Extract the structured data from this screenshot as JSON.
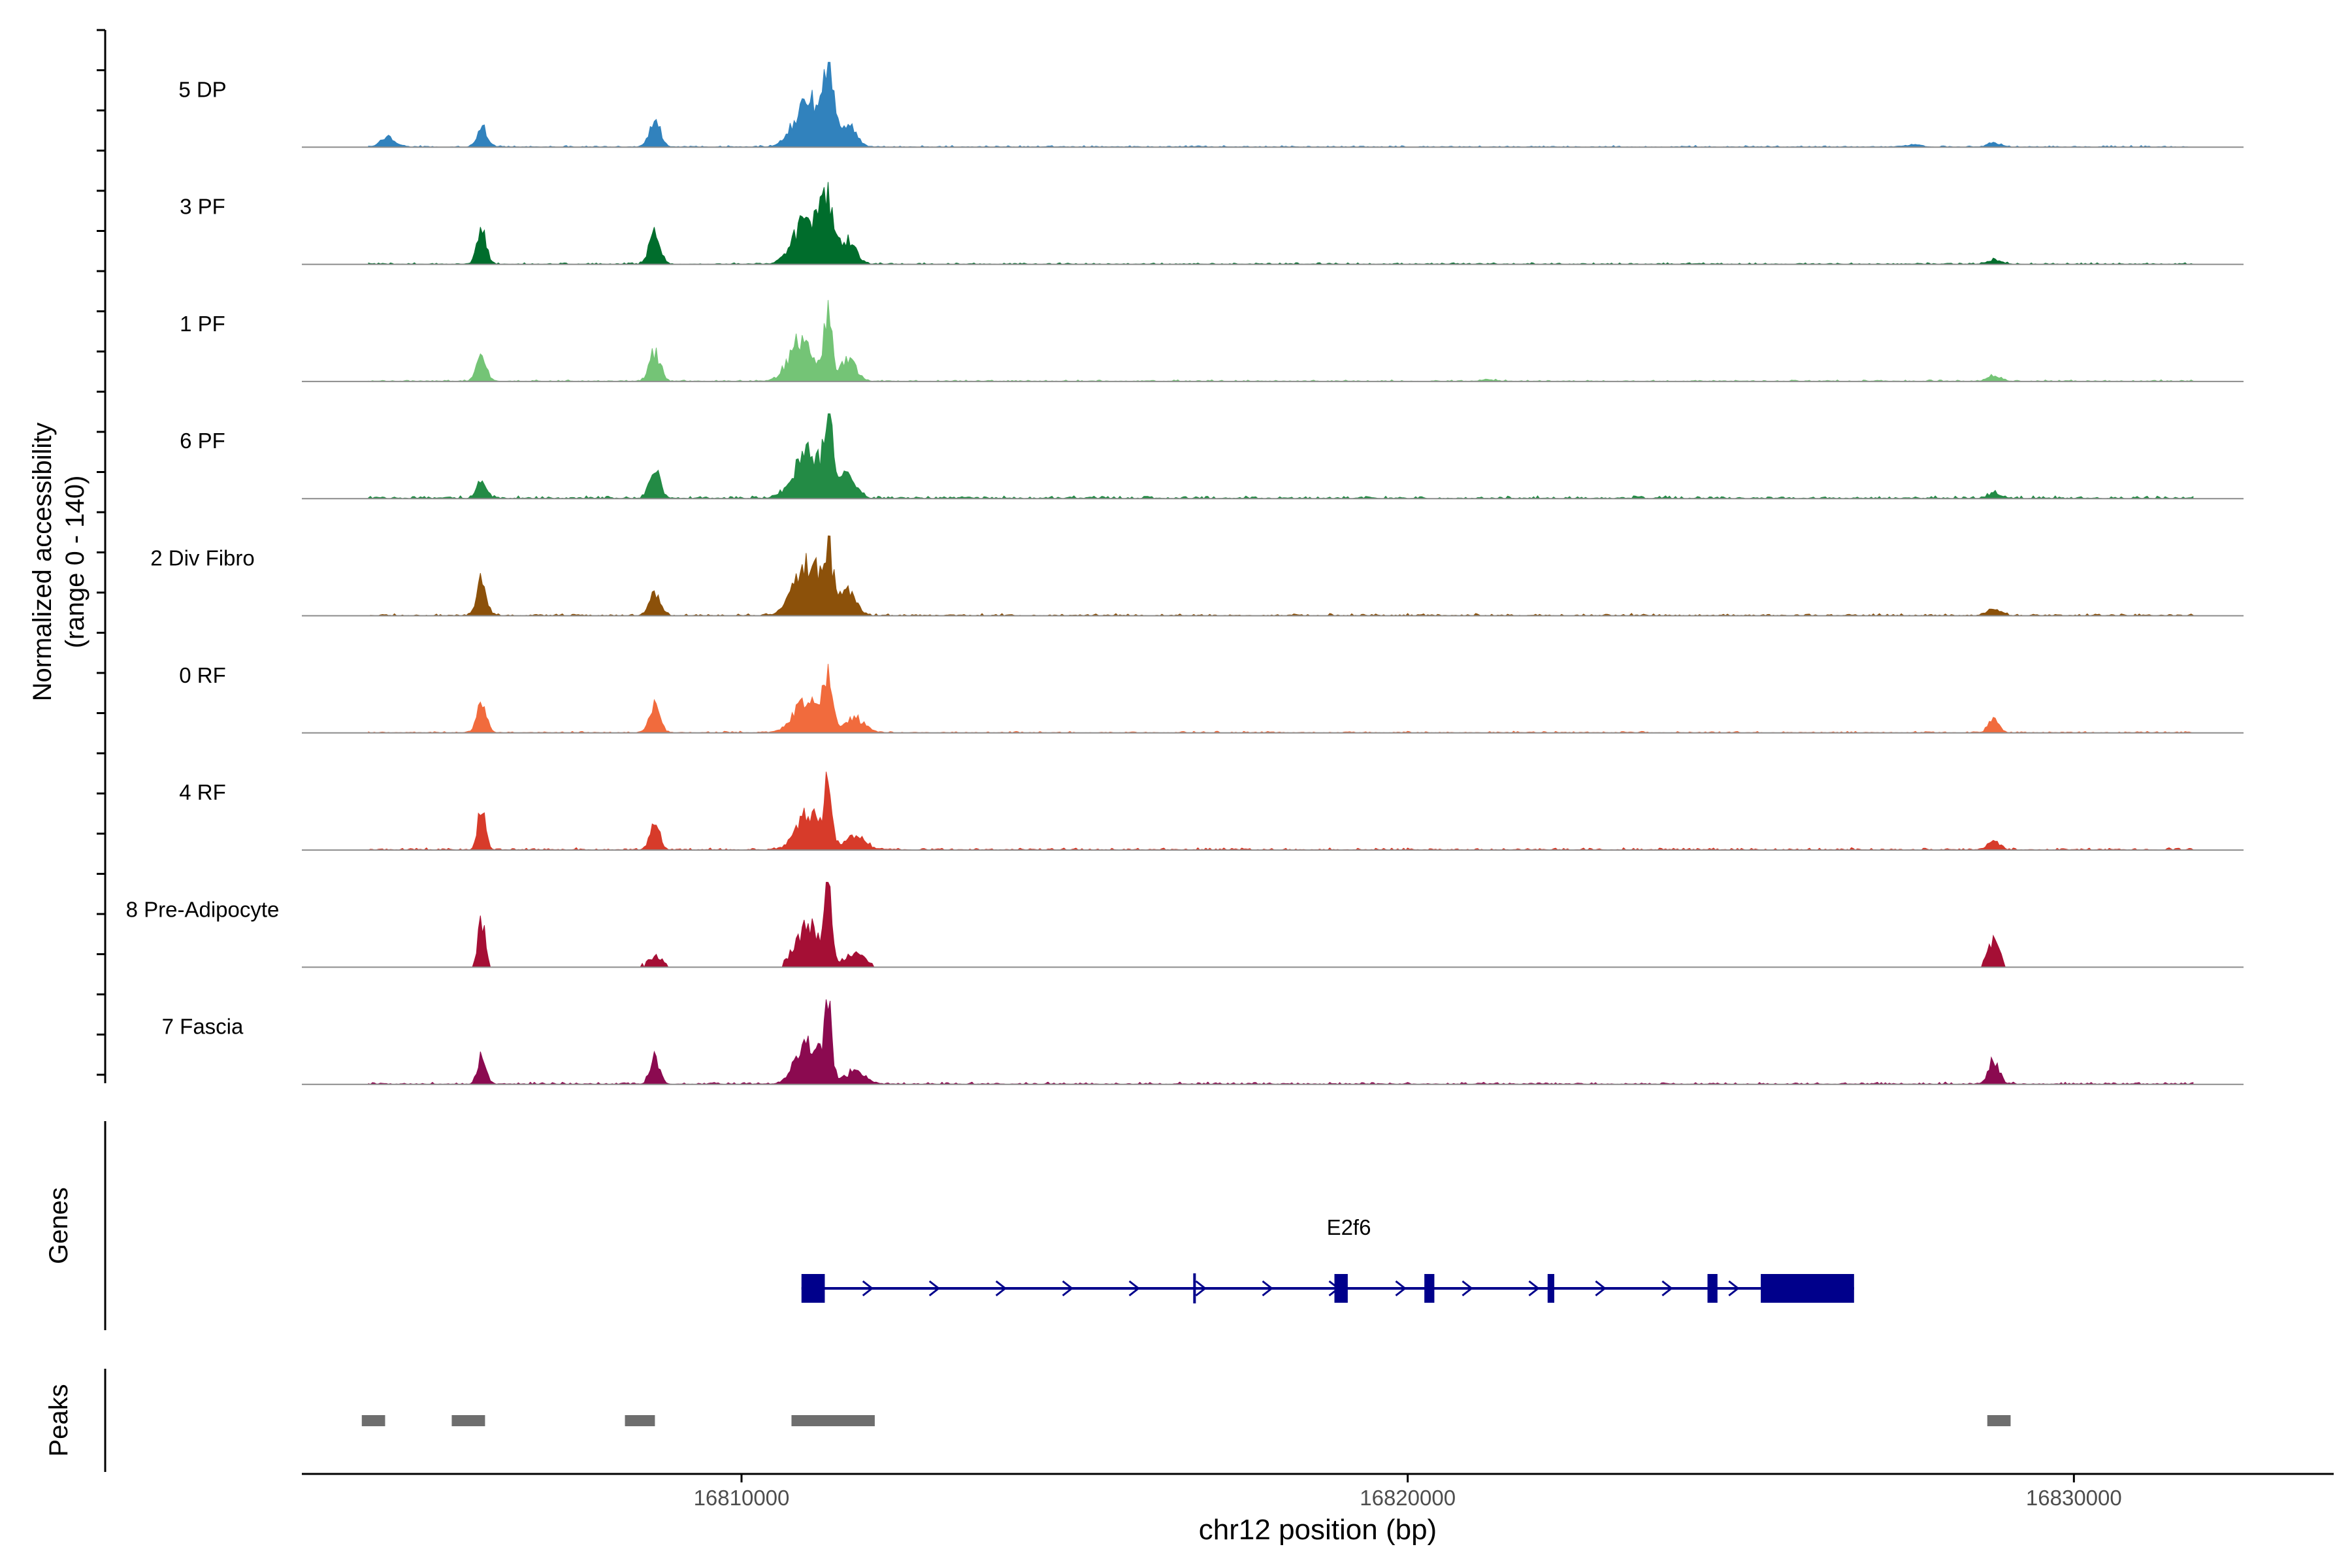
{
  "chart_data": {
    "type": "area",
    "y_axis_label_line1": "Normalized accessibility",
    "y_axis_label_line2": "(range 0 - 140)",
    "ylim": [
      0,
      140
    ],
    "x_axis": {
      "label": "chr12 position (bp)",
      "range": [
        16803400,
        16833900
      ],
      "ticks": [
        {
          "value": 16810000,
          "label": "16810000"
        },
        {
          "value": 16820000,
          "label": "16820000"
        },
        {
          "value": 16830000,
          "label": "16830000"
        }
      ]
    },
    "track_start": 16804400,
    "track_end": 16831800,
    "series": [
      {
        "name": "5 DP",
        "color": "#3182BD",
        "baseline": 3,
        "peaks": [
          [
            16804700,
            20,
            110
          ],
          [
            16806100,
            46,
            70
          ],
          [
            16808700,
            58,
            80
          ],
          [
            16811000,
            100,
            200
          ],
          [
            16811300,
            135,
            80
          ],
          [
            16811600,
            45,
            120
          ],
          [
            16827600,
            5,
            120
          ],
          [
            16828800,
            9,
            100
          ]
        ]
      },
      {
        "name": "3 PF",
        "color": "#006D2C",
        "baseline": 3,
        "peaks": [
          [
            16806100,
            66,
            70
          ],
          [
            16808700,
            70,
            80
          ],
          [
            16811000,
            100,
            200
          ],
          [
            16811300,
            112,
            90
          ],
          [
            16811600,
            50,
            120
          ],
          [
            16828800,
            9,
            100
          ]
        ]
      },
      {
        "name": "1 PF",
        "color": "#74C476",
        "baseline": 3,
        "peaks": [
          [
            16806100,
            58,
            70
          ],
          [
            16808700,
            62,
            80
          ],
          [
            16810900,
            88,
            180
          ],
          [
            16811300,
            138,
            60
          ],
          [
            16811600,
            45,
            120
          ],
          [
            16821200,
            4,
            100
          ],
          [
            16828800,
            11,
            100
          ]
        ]
      },
      {
        "name": "6 PF",
        "color": "#238B45",
        "baseline": 5,
        "peaks": [
          [
            16806100,
            40,
            70
          ],
          [
            16808700,
            58,
            80
          ],
          [
            16811000,
            100,
            200
          ],
          [
            16811300,
            165,
            60
          ],
          [
            16811600,
            50,
            120
          ],
          [
            16828800,
            10,
            100
          ]
        ]
      },
      {
        "name": "2 Div Fibro",
        "color": "#8C510A",
        "baseline": 4,
        "peaks": [
          [
            16806100,
            75,
            70
          ],
          [
            16808700,
            48,
            80
          ],
          [
            16811000,
            110,
            200
          ],
          [
            16811300,
            115,
            70
          ],
          [
            16811600,
            50,
            120
          ],
          [
            16828800,
            14,
            100
          ]
        ]
      },
      {
        "name": "0 RF",
        "color": "#F16B3D",
        "baseline": 3,
        "peaks": [
          [
            16806100,
            62,
            70
          ],
          [
            16808700,
            55,
            80
          ],
          [
            16811000,
            75,
            200
          ],
          [
            16811300,
            110,
            70
          ],
          [
            16811700,
            30,
            150
          ],
          [
            16828800,
            27,
            80
          ]
        ]
      },
      {
        "name": "4 RF",
        "color": "#D73B2A",
        "baseline": 4,
        "peaks": [
          [
            16806100,
            86,
            60
          ],
          [
            16808700,
            60,
            70
          ],
          [
            16811000,
            75,
            180
          ],
          [
            16811300,
            115,
            60
          ],
          [
            16811700,
            30,
            150
          ],
          [
            16828800,
            22,
            80
          ]
        ]
      },
      {
        "name": "8 Pre-Adipocyte",
        "color": "#A50F35",
        "baseline": 0,
        "peaks": [
          [
            16806100,
            90,
            60
          ],
          [
            16808700,
            22,
            120
          ],
          [
            16811000,
            90,
            180
          ],
          [
            16811300,
            160,
            50
          ],
          [
            16811700,
            30,
            150
          ],
          [
            16828800,
            55,
            90
          ]
        ]
      },
      {
        "name": "7 Fascia",
        "color": "#8B0A50",
        "baseline": 4,
        "peaks": [
          [
            16806100,
            66,
            60
          ],
          [
            16808700,
            56,
            70
          ],
          [
            16811000,
            90,
            180
          ],
          [
            16811300,
            132,
            60
          ],
          [
            16811700,
            25,
            150
          ],
          [
            16828800,
            50,
            80
          ]
        ]
      }
    ],
    "genes": [
      {
        "name": "E2f6",
        "strand": "+",
        "start": 16810900,
        "end": 16826700,
        "exons": [
          [
            16810900,
            16811250
          ],
          [
            16818900,
            16819100
          ],
          [
            16820250,
            16820400
          ],
          [
            16822100,
            16822200
          ],
          [
            16824500,
            16824650
          ],
          [
            16825300,
            16826700
          ]
        ],
        "marker": 16816800
      }
    ],
    "gene_track_label": "Genes",
    "peaks_track_label": "Peaks",
    "peak_regions": [
      [
        16804300,
        16804650
      ],
      [
        16805650,
        16806150
      ],
      [
        16808250,
        16808700
      ],
      [
        16810750,
        16812000
      ],
      [
        16828700,
        16829050
      ]
    ],
    "colors": {
      "gene": "#00008B",
      "peak": "#6E6E6E",
      "axis": "#000000",
      "track_baseline": "#8C8C8C"
    }
  }
}
